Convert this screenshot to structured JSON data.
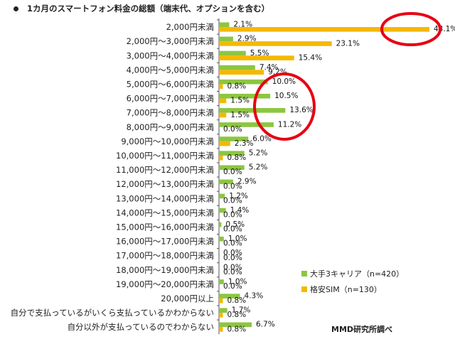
{
  "chart_data": {
    "type": "bar",
    "orientation": "horizontal",
    "title": "1カ月のスマートフォン料金の総額（端末代、オプションを含む）",
    "source": "MMD研究所調べ",
    "categories": [
      "2,000円未満",
      "2,000円～3,000円未満",
      "3,000円～4,000円未満",
      "4,000円～5,000円未満",
      "5,000円～6,000円未満",
      "6,000円～7,000円未満",
      "7,000円～8,000円未満",
      "8,000円～9,000円未満",
      "9,000円～10,000円未満",
      "10,000円～11,000円未満",
      "11,000円～12,000円未満",
      "12,000円～13,000円未満",
      "13,000円～14,000円未満",
      "14,000円～15,000円未満",
      "15,000円～16,000円未満",
      "16,000円～17,000円未満",
      "17,000円～18,000円未満",
      "18,000円～19,000円未満",
      "19,000円～20,000円未満",
      "20,000円以上",
      "自分で支払っているがいくら支払っているかわからない",
      "自分以外が支払っているのでわからない"
    ],
    "series": [
      {
        "name": "大手3キャリア（n=420）",
        "color": "#8cc63f",
        "values": [
          2.1,
          2.9,
          5.5,
          7.4,
          10.0,
          10.5,
          13.6,
          11.2,
          6.0,
          5.2,
          5.2,
          2.9,
          1.2,
          1.4,
          0.5,
          1.0,
          0.0,
          0.0,
          1.0,
          4.3,
          1.7,
          6.7
        ]
      },
      {
        "name": "格安SIM（n=130）",
        "color": "#f5b800",
        "values": [
          43.1,
          23.1,
          15.4,
          9.2,
          0.8,
          1.5,
          1.5,
          0.0,
          2.3,
          0.8,
          0.0,
          0.0,
          0.0,
          0.0,
          0.0,
          0.0,
          0.0,
          0.0,
          0.0,
          0.8,
          0.8,
          0.8
        ]
      }
    ],
    "xlim": [
      0,
      45
    ],
    "unit": "%",
    "legend_position": "bottom-right",
    "annotation_color": "#e60012"
  }
}
